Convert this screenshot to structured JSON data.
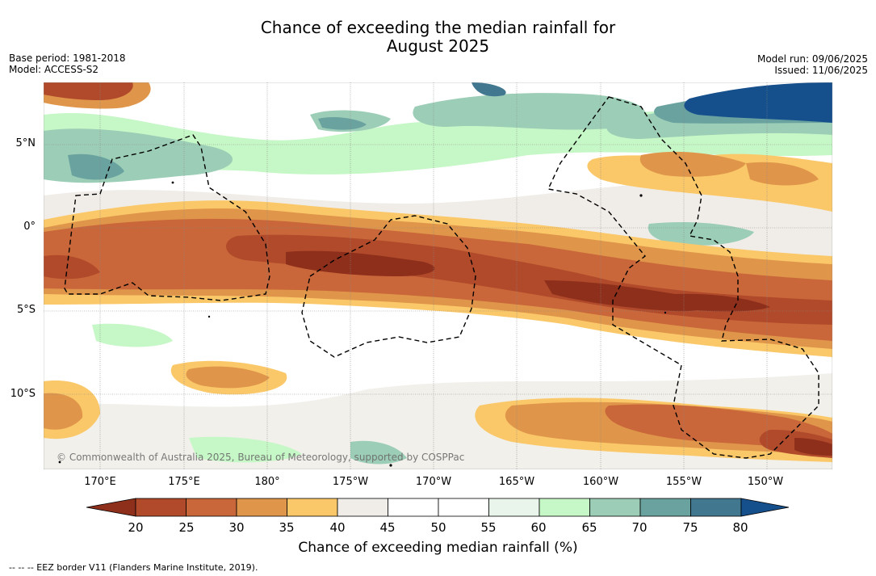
{
  "title_line1": "Chance of exceeding the median rainfall for",
  "title_line2": "August 2025",
  "base_period": "Base period: 1981-2018",
  "model": "Model: ACCESS-S2",
  "model_run": "Model run: 09/06/2025",
  "issued": "Issued: 11/06/2025",
  "lat_labels": [
    "5°N",
    "0°",
    "5°S",
    "10°S"
  ],
  "lon_labels": [
    "170°E",
    "175°E",
    "180°",
    "175°W",
    "170°W",
    "165°W",
    "160°W",
    "155°W",
    "150°W"
  ],
  "copyright": "© Commonwealth of Australia 2025, Bureau of Meteorology, supported by COSPPac",
  "colorbar": {
    "label": "Chance of exceeding median rainfall (%)",
    "ticks": [
      "20",
      "25",
      "30",
      "35",
      "40",
      "45",
      "50",
      "55",
      "60",
      "65",
      "70",
      "75",
      "80"
    ],
    "colors": [
      "#8e2f1c",
      "#b04a2a",
      "#c9673a",
      "#e0964a",
      "#fbc869",
      "#f0ede8",
      "#ffffff",
      "#ffffff",
      "#e9f5ea",
      "#c6f7c6",
      "#9ccdb6",
      "#6aa2a0",
      "#42788f",
      "#154f8c"
    ]
  },
  "footnote": "-- -- -- EEZ border V11 (Flanders Marine Institute, 2019)."
}
